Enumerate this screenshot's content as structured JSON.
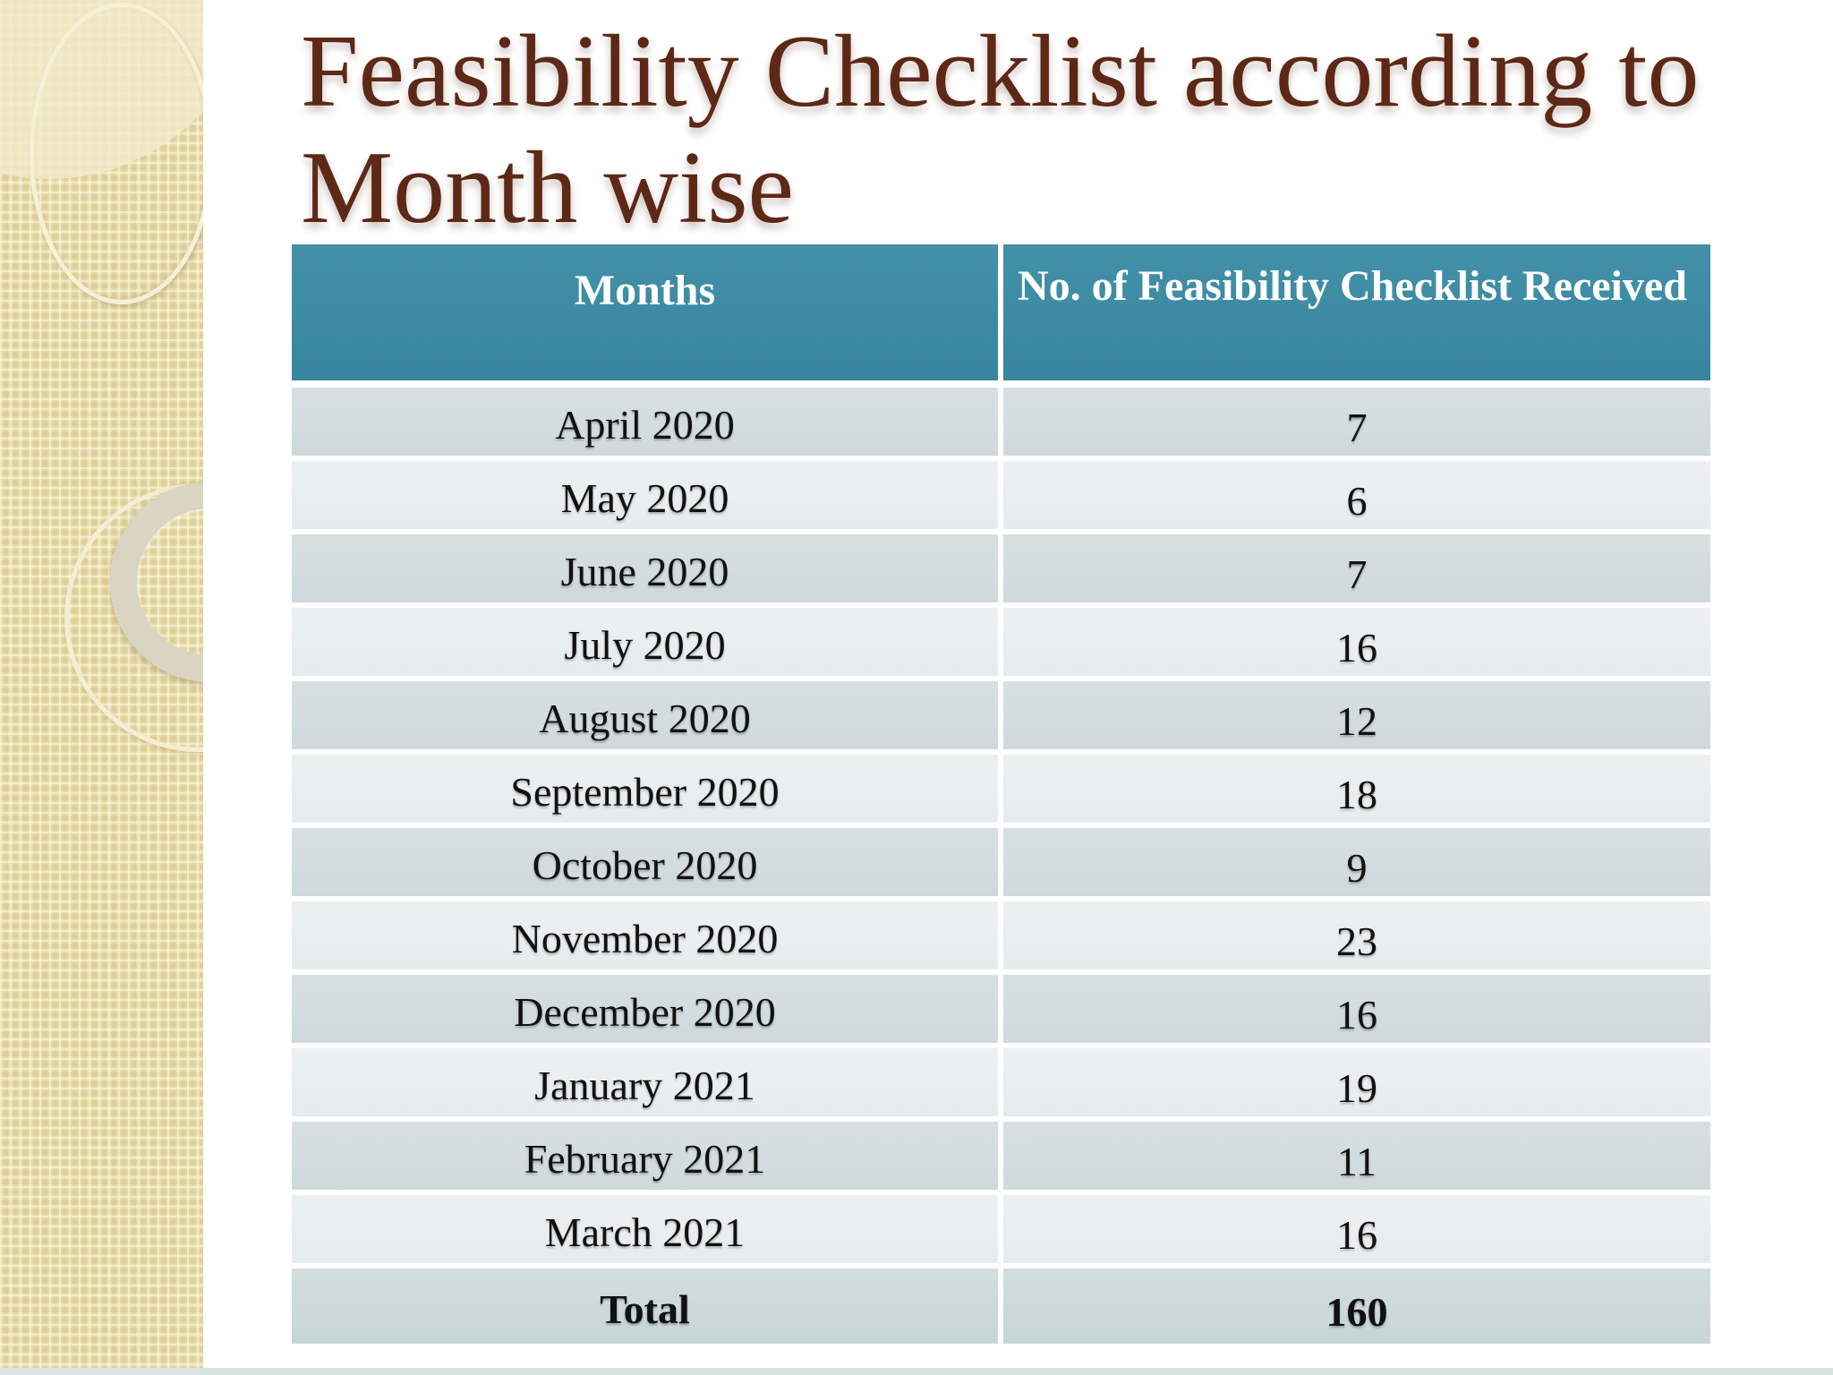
{
  "slide": {
    "title_line1": "Feasibility Checklist according to",
    "title_line2": "Month wise"
  },
  "table": {
    "headers": [
      "Months",
      "No. of Feasibility Checklist Received"
    ],
    "rows": [
      {
        "month": "April 2020",
        "value": "7"
      },
      {
        "month": "May 2020",
        "value": "6"
      },
      {
        "month": "June 2020",
        "value": "7"
      },
      {
        "month": "July 2020",
        "value": "16"
      },
      {
        "month": "August 2020",
        "value": "12"
      },
      {
        "month": "September 2020",
        "value": "18"
      },
      {
        "month": "October 2020",
        "value": "9"
      },
      {
        "month": "November 2020",
        "value": "23"
      },
      {
        "month": "December 2020",
        "value": "16"
      },
      {
        "month": "January 2021",
        "value": "19"
      },
      {
        "month": "February 2021",
        "value": "11"
      },
      {
        "month": "March 2021",
        "value": "16"
      }
    ],
    "total_label": "Total",
    "total_value": "160"
  },
  "colors": {
    "title_text": "#5E2817",
    "header_bg": "#3E8DA5",
    "row_dark": "#D2DBDD",
    "row_light": "#E9EEF0",
    "total_row_bg": "#CCDADA",
    "sidebar_bg": "#EAE0B0"
  }
}
